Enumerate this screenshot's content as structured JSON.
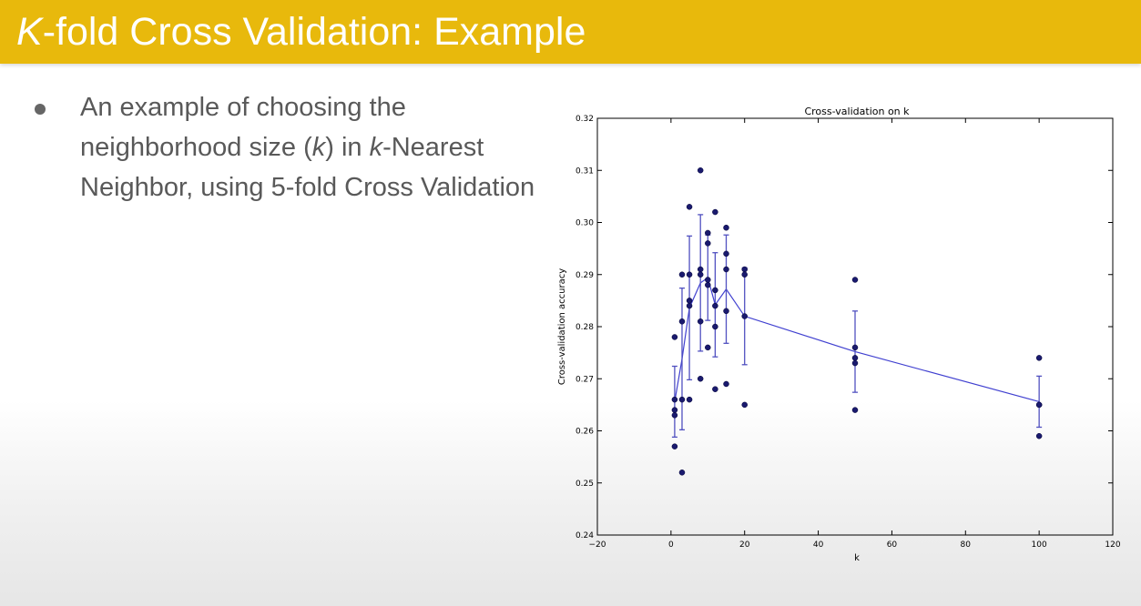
{
  "slide": {
    "title_k": "K",
    "title_rest": "-fold Cross Validation: Example",
    "bullet": {
      "p1": "An example of choosing the neighborhood size (",
      "k1": "k",
      "p2": ") in ",
      "k2": "k",
      "p3": "-Nearest Neighbor, using 5-fold Cross Validation"
    }
  },
  "colors": {
    "title_bar": "#e8b90c",
    "title_text": "#ffffff",
    "body_text": "#595959",
    "points": "#1a1a6e",
    "line": "#4040d0",
    "errorbar": "#5050c0"
  },
  "chart_data": {
    "type": "scatter",
    "title": "Cross-validation on k",
    "xlabel": "k",
    "ylabel": "Cross-validation accuracy",
    "xlim": [
      -20,
      120
    ],
    "ylim": [
      0.24,
      0.32
    ],
    "xticks": [
      -20,
      0,
      20,
      40,
      60,
      80,
      100,
      120
    ],
    "yticks": [
      0.24,
      0.25,
      0.26,
      0.27,
      0.28,
      0.29,
      0.3,
      0.31,
      0.32
    ],
    "xtick_labels": [
      "−20",
      "0",
      "20",
      "40",
      "60",
      "80",
      "100",
      "120"
    ],
    "ytick_labels": [
      "0.24",
      "0.25",
      "0.26",
      "0.27",
      "0.28",
      "0.29",
      "0.30",
      "0.31",
      "0.32"
    ],
    "grid": false,
    "points": [
      [
        1,
        0.278
      ],
      [
        1,
        0.266
      ],
      [
        1,
        0.264
      ],
      [
        1,
        0.263
      ],
      [
        1,
        0.257
      ],
      [
        3,
        0.29
      ],
      [
        3,
        0.281
      ],
      [
        3,
        0.266
      ],
      [
        3,
        0.252
      ],
      [
        5,
        0.303
      ],
      [
        5,
        0.29
      ],
      [
        5,
        0.285
      ],
      [
        5,
        0.284
      ],
      [
        5,
        0.266
      ],
      [
        8,
        0.31
      ],
      [
        8,
        0.291
      ],
      [
        8,
        0.29
      ],
      [
        8,
        0.281
      ],
      [
        8,
        0.27
      ],
      [
        10,
        0.298
      ],
      [
        10,
        0.296
      ],
      [
        10,
        0.289
      ],
      [
        10,
        0.288
      ],
      [
        10,
        0.276
      ],
      [
        12,
        0.302
      ],
      [
        12,
        0.287
      ],
      [
        12,
        0.284
      ],
      [
        12,
        0.28
      ],
      [
        12,
        0.268
      ],
      [
        15,
        0.299
      ],
      [
        15,
        0.294
      ],
      [
        15,
        0.291
      ],
      [
        15,
        0.283
      ],
      [
        15,
        0.269
      ],
      [
        20,
        0.291
      ],
      [
        20,
        0.29
      ],
      [
        20,
        0.282
      ],
      [
        20,
        0.265
      ],
      [
        50,
        0.289
      ],
      [
        50,
        0.276
      ],
      [
        50,
        0.274
      ],
      [
        50,
        0.273
      ],
      [
        50,
        0.264
      ],
      [
        100,
        0.274
      ],
      [
        100,
        0.265
      ],
      [
        100,
        0.265
      ],
      [
        100,
        0.259
      ]
    ],
    "mean_series": {
      "x": [
        1,
        3,
        5,
        8,
        10,
        12,
        15,
        20,
        50,
        100
      ],
      "mean": [
        0.2656,
        0.2738,
        0.2836,
        0.2884,
        0.2894,
        0.2842,
        0.2872,
        0.282,
        0.2752,
        0.2656
      ],
      "std": [
        0.0068,
        0.0136,
        0.0138,
        0.0131,
        0.0082,
        0.01,
        0.0104,
        0.0093,
        0.0078,
        0.0049
      ]
    }
  }
}
